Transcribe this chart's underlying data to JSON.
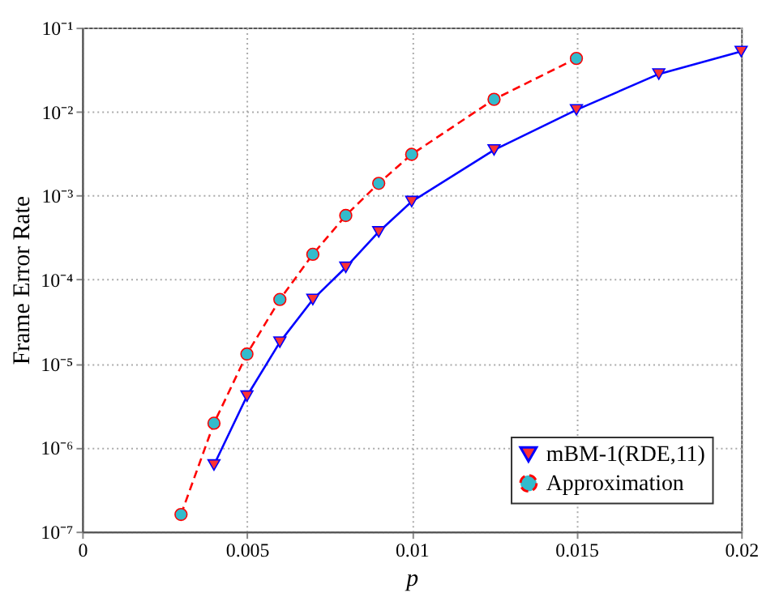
{
  "chart_data": {
    "type": "line",
    "xlabel": "p",
    "ylabel": "Frame Error Rate",
    "xlim": [
      0,
      0.02
    ],
    "xticks": [
      0,
      0.005,
      0.01,
      0.015,
      0.02
    ],
    "ylim": [
      1e-07,
      0.1
    ],
    "yticks": [
      {
        "value": 1e-07,
        "label": "10⁻⁷"
      },
      {
        "value": 1e-06,
        "label": "10⁻⁶"
      },
      {
        "value": 1e-05,
        "label": "10⁻⁵"
      },
      {
        "value": 0.0001,
        "label": "10⁻⁴"
      },
      {
        "value": 0.001,
        "label": "10⁻³"
      },
      {
        "value": 0.01,
        "label": "10⁻²"
      },
      {
        "value": 0.1,
        "label": "10⁻¹"
      }
    ],
    "log": "y",
    "grid": true,
    "legend": "bottom right",
    "series": [
      {
        "name": "mBM-1(RDE,11)",
        "color": "#0000ff",
        "marker": "triangle",
        "line_style": "solid",
        "x": [
          0.004,
          0.005,
          0.006,
          0.007,
          0.008,
          0.009,
          0.01,
          0.0125,
          0.015,
          0.0175,
          0.02
        ],
        "values": [
          6.2e-07,
          4.1e-06,
          1.8e-05,
          5.8e-05,
          0.00014,
          0.00037,
          0.00085,
          0.0035,
          0.0105,
          0.028,
          0.052
        ]
      },
      {
        "name": "Approximation",
        "color": "#ff0000",
        "marker": "circle",
        "line_style": "dashed",
        "x": [
          0.003,
          0.004,
          0.005,
          0.006,
          0.007,
          0.008,
          0.009,
          0.01,
          0.0125,
          0.015
        ],
        "values": [
          1.6e-07,
          1.95e-06,
          1.3e-05,
          5.8e-05,
          0.0002,
          0.00058,
          0.0014,
          0.0031,
          0.014,
          0.043
        ]
      }
    ]
  }
}
